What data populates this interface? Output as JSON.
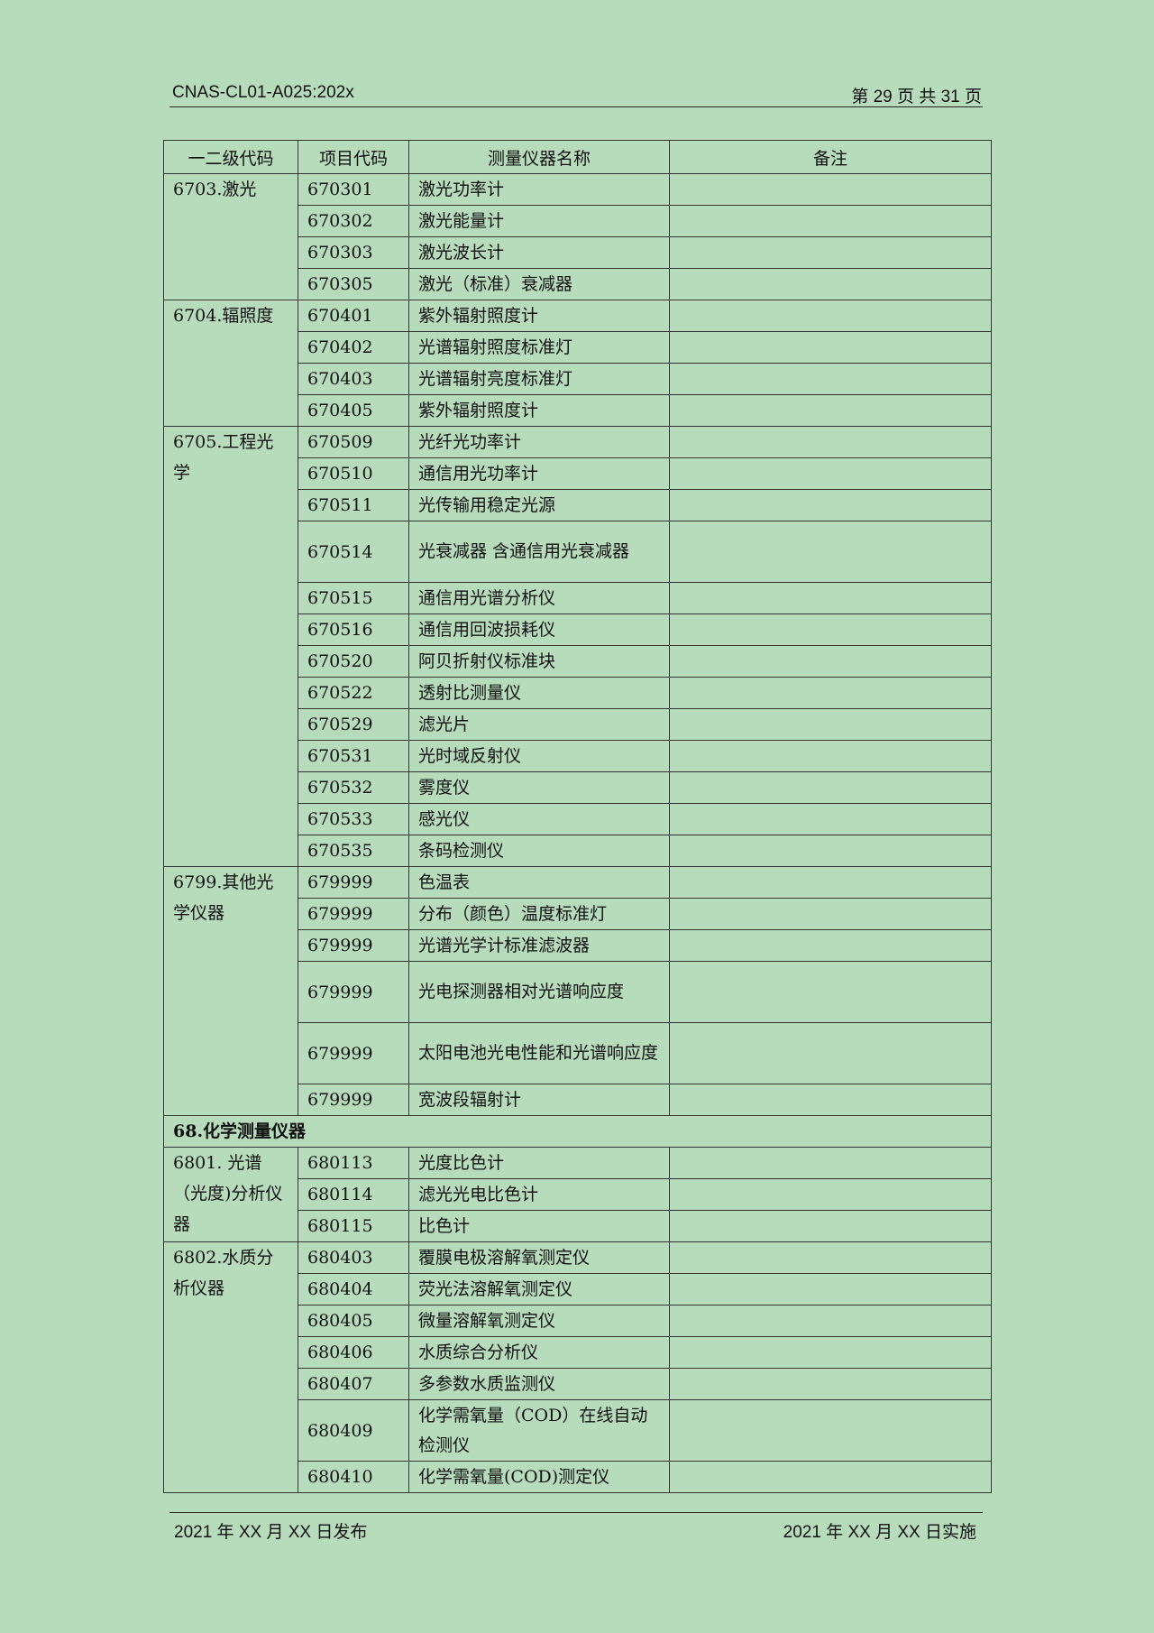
{
  "header": {
    "doc_code": "CNAS-CL01-A025:202x",
    "page_info": "第 29 页 共 31 页"
  },
  "table": {
    "columns": [
      "一二级代码",
      "项目代码",
      "测量仪器名称",
      "备注"
    ],
    "groups": [
      {
        "label": "6703.激光",
        "rows": [
          {
            "code": "670301",
            "name": "激光功率计"
          },
          {
            "code": "670302",
            "name": "激光能量计"
          },
          {
            "code": "670303",
            "name": "激光波长计"
          },
          {
            "code": "670305",
            "name": "激光（标准）衰减器"
          }
        ]
      },
      {
        "label": "6704.辐照度",
        "rows": [
          {
            "code": "670401",
            "name": "紫外辐射照度计"
          },
          {
            "code": "670402",
            "name": "光谱辐射照度标准灯"
          },
          {
            "code": "670403",
            "name": "光谱辐射亮度标准灯"
          },
          {
            "code": "670405",
            "name": "紫外辐射照度计"
          }
        ]
      },
      {
        "label": "6705.工程光学",
        "rows": [
          {
            "code": "670509",
            "name": "光纤光功率计"
          },
          {
            "code": "670510",
            "name": "通信用光功率计"
          },
          {
            "code": "670511",
            "name": "光传输用稳定光源"
          },
          {
            "code": "670514",
            "name": "光衰减器 含通信用光衰减器",
            "tall": true
          },
          {
            "code": "670515",
            "name": "通信用光谱分析仪"
          },
          {
            "code": "670516",
            "name": "通信用回波损耗仪"
          },
          {
            "code": "670520",
            "name": "阿贝折射仪标准块"
          },
          {
            "code": "670522",
            "name": "透射比测量仪"
          },
          {
            "code": "670529",
            "name": "滤光片"
          },
          {
            "code": "670531",
            "name": "光时域反射仪"
          },
          {
            "code": "670532",
            "name": "雾度仪"
          },
          {
            "code": "670533",
            "name": "感光仪"
          },
          {
            "code": "670535",
            "name": "条码检测仪"
          }
        ]
      },
      {
        "label": "6799.其他光学仪器",
        "rows": [
          {
            "code": "679999",
            "name": "色温表"
          },
          {
            "code": "679999",
            "name": "分布（颜色）温度标准灯"
          },
          {
            "code": "679999",
            "name": "光谱光学计标准滤波器"
          },
          {
            "code": "679999",
            "name": "光电探测器相对光谱响应度",
            "tall": true
          },
          {
            "code": "679999",
            "name": "太阳电池光电性能和光谱响应度",
            "tall": true
          },
          {
            "code": "679999",
            "name": "宽波段辐射计"
          }
        ]
      },
      {
        "section": "68.化学测量仪器"
      },
      {
        "label": "6801. 光谱（光度)分析仪器",
        "rows": [
          {
            "code": "680113",
            "name": "光度比色计"
          },
          {
            "code": "680114",
            "name": "滤光光电比色计"
          },
          {
            "code": "680115",
            "name": "比色计"
          }
        ]
      },
      {
        "label": "6802.水质分析仪器",
        "rows": [
          {
            "code": "680403",
            "name": "覆膜电极溶解氧测定仪"
          },
          {
            "code": "680404",
            "name": "荧光法溶解氧测定仪"
          },
          {
            "code": "680405",
            "name": "微量溶解氧测定仪"
          },
          {
            "code": "680406",
            "name": "水质综合分析仪"
          },
          {
            "code": "680407",
            "name": "多参数水质监测仪"
          },
          {
            "code": "680409",
            "name": "化学需氧量（COD）在线自动检测仪",
            "tall": true
          },
          {
            "code": "680410",
            "name": "化学需氧量(COD)测定仪"
          }
        ]
      }
    ]
  },
  "footer": {
    "publish": "2021 年 XX 月 XX 日发布",
    "implement": "2021 年 XX 月 XX 日实施"
  }
}
